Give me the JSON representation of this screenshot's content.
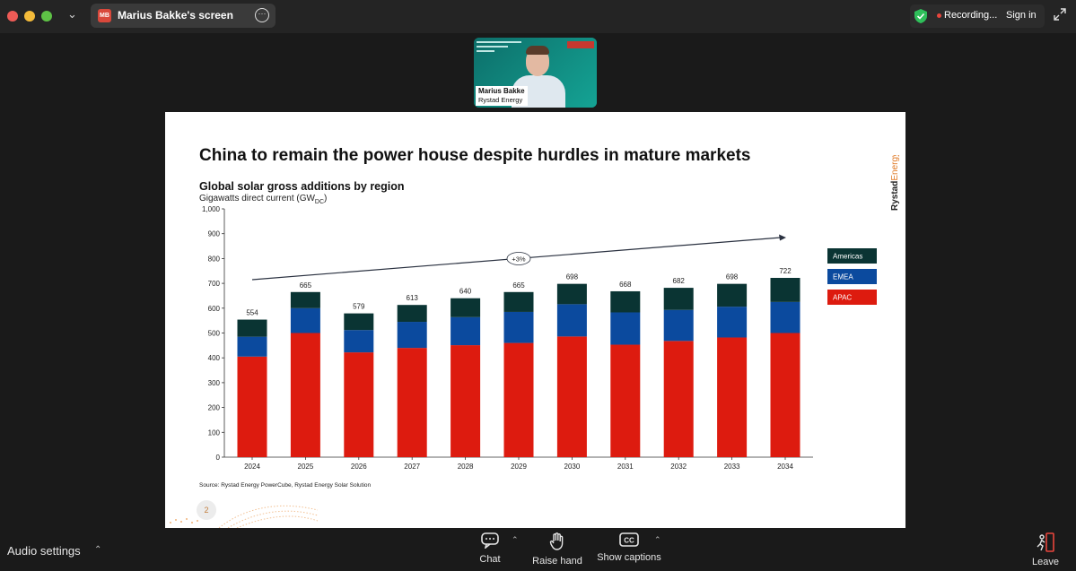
{
  "window": {
    "share_badge": "MB",
    "share_title": "Marius Bakke's screen",
    "recording_label": "Recording...",
    "signin_label": "Sign in"
  },
  "video": {
    "participant_name": "Marius Bakke",
    "participant_org": "Rystad Energy"
  },
  "slide": {
    "title": "China to remain the power house despite hurdles in mature markets",
    "brand_text": "Rystad",
    "brand_text2": "Energy",
    "source": "Source: Rystad Energy PowerCube, Rystad Energy Solar Solution",
    "page_number": "2"
  },
  "chart_data": {
    "type": "bar",
    "stacked": true,
    "title": "Global solar gross additions by region",
    "subtitle_main": "Gigawatts direct current (GW",
    "subtitle_sub": "DC",
    "subtitle_end": ")",
    "categories": [
      "2024",
      "2025",
      "2026",
      "2027",
      "2028",
      "2029",
      "2030",
      "2031",
      "2032",
      "2033",
      "2034"
    ],
    "series": [
      {
        "name": "APAC",
        "color": "#dd1b0f",
        "values": [
          405,
          500,
          422,
          440,
          451,
          460,
          486,
          453,
          468,
          482,
          500
        ]
      },
      {
        "name": "EMEA",
        "color": "#0b4a9e",
        "values": [
          80,
          100,
          90,
          105,
          113,
          125,
          130,
          130,
          125,
          124,
          125
        ]
      },
      {
        "name": "Americas",
        "color": "#0a3433",
        "values": [
          69,
          65,
          67,
          68,
          76,
          80,
          82,
          85,
          89,
          92,
          97
        ]
      }
    ],
    "totals": [
      "554",
      "665",
      "579",
      "613",
      "640",
      "665",
      "698",
      "668",
      "682",
      "698",
      "722"
    ],
    "ylim": [
      0,
      1000
    ],
    "yticks": [
      "0",
      "100",
      "200",
      "300",
      "400",
      "500",
      "600",
      "700",
      "800",
      "900",
      "1,000"
    ],
    "legend_position": "right",
    "annotation": "+3%"
  },
  "controls": {
    "audio_settings": "Audio settings",
    "chat": "Chat",
    "raise_hand": "Raise hand",
    "show_captions": "Show captions",
    "leave": "Leave"
  }
}
